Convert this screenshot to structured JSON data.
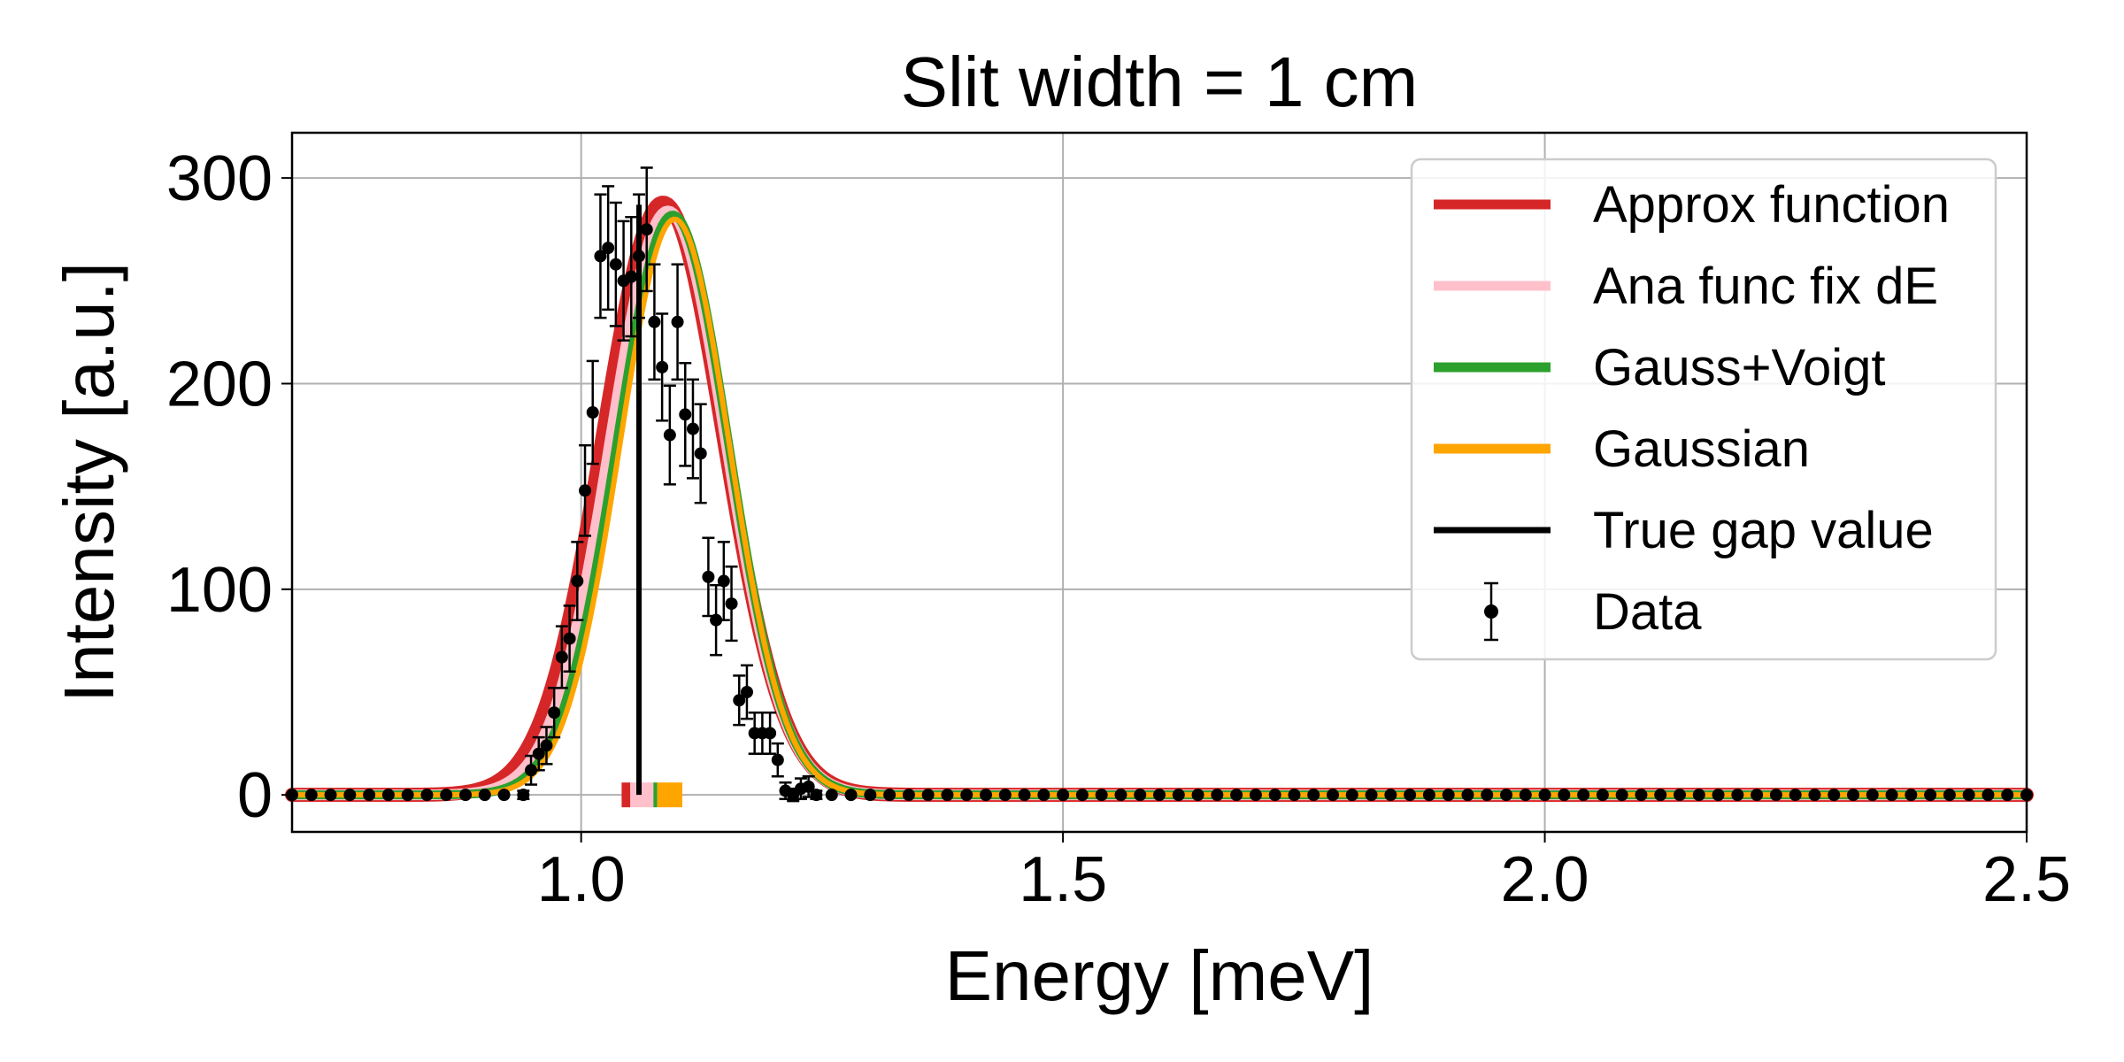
{
  "chart_data": {
    "type": "line",
    "title": "Slit width = 1 cm",
    "xlabel": "Energy [meV]",
    "ylabel": "Intensity [a.u.]",
    "xlim": [
      0.7,
      2.5
    ],
    "ylim": [
      -18,
      322
    ],
    "xticks": [
      {
        "value": 1.0,
        "label": "1.0"
      },
      {
        "value": 1.5,
        "label": "1.5"
      },
      {
        "value": 2.0,
        "label": "2.0"
      },
      {
        "value": 2.5,
        "label": "2.5"
      }
    ],
    "yticks": [
      {
        "value": 0,
        "label": "0"
      },
      {
        "value": 100,
        "label": "100"
      },
      {
        "value": 200,
        "label": "200"
      },
      {
        "value": 300,
        "label": "300"
      }
    ],
    "grid": true,
    "legend_position": "top-right",
    "series": [
      {
        "name": "Approx function",
        "color": "#d62728",
        "kind": "curve",
        "center": 1.085,
        "sigma": 0.0625,
        "amplitude": 288
      },
      {
        "name": "Ana func fix dE",
        "color": "#ffc0cb",
        "kind": "curve",
        "center": 1.09,
        "sigma": 0.06,
        "amplitude": 284
      },
      {
        "name": "Gauss+Voigt",
        "color": "#2ca02c",
        "kind": "curve",
        "center": 1.095,
        "sigma": 0.058,
        "amplitude": 282
      },
      {
        "name": "Gaussian",
        "color": "#ffa500",
        "kind": "curve",
        "center": 1.097,
        "sigma": 0.057,
        "amplitude": 280
      },
      {
        "name": "True gap value",
        "color": "#000000",
        "kind": "vline",
        "x": 1.06,
        "y_top": 287
      },
      {
        "name": "Data",
        "color": "#000000",
        "kind": "errorbar"
      }
    ],
    "gap_markers": [
      {
        "name": "Approx function",
        "color": "#d62728",
        "x_start": 1.042,
        "x_end": 1.051
      },
      {
        "name": "Ana func fix dE",
        "color": "#ffc0cb",
        "x_start": 1.051,
        "x_end": 1.075
      },
      {
        "name": "Gauss+Voigt",
        "color": "#2ca02c",
        "x_start": 1.075,
        "x_end": 1.079
      },
      {
        "name": "Gaussian",
        "color": "#ffa500",
        "x_start": 1.079,
        "x_end": 1.105
      }
    ],
    "data_points": [
      {
        "x": 0.7,
        "y": 0,
        "err": 0
      },
      {
        "x": 0.72,
        "y": 0,
        "err": 0
      },
      {
        "x": 0.74,
        "y": 0,
        "err": 0
      },
      {
        "x": 0.76,
        "y": 0,
        "err": 0
      },
      {
        "x": 0.78,
        "y": 0,
        "err": 0
      },
      {
        "x": 0.8,
        "y": 0,
        "err": 0
      },
      {
        "x": 0.82,
        "y": 0,
        "err": 0
      },
      {
        "x": 0.84,
        "y": 0,
        "err": 0
      },
      {
        "x": 0.86,
        "y": 0,
        "err": 0
      },
      {
        "x": 0.88,
        "y": 0,
        "err": 0
      },
      {
        "x": 0.9,
        "y": 0,
        "err": 0
      },
      {
        "x": 0.92,
        "y": 0,
        "err": 0
      },
      {
        "x": 0.94,
        "y": 0,
        "err": 2
      },
      {
        "x": 0.948,
        "y": 12,
        "err": 7
      },
      {
        "x": 0.956,
        "y": 20,
        "err": 8
      },
      {
        "x": 0.964,
        "y": 24,
        "err": 9
      },
      {
        "x": 0.972,
        "y": 40,
        "err": 12
      },
      {
        "x": 0.98,
        "y": 67,
        "err": 15
      },
      {
        "x": 0.988,
        "y": 76,
        "err": 16
      },
      {
        "x": 0.996,
        "y": 104,
        "err": 19
      },
      {
        "x": 1.004,
        "y": 148,
        "err": 22
      },
      {
        "x": 1.012,
        "y": 186,
        "err": 25
      },
      {
        "x": 1.02,
        "y": 262,
        "err": 30
      },
      {
        "x": 1.028,
        "y": 266,
        "err": 30
      },
      {
        "x": 1.036,
        "y": 258,
        "err": 30
      },
      {
        "x": 1.044,
        "y": 250,
        "err": 29
      },
      {
        "x": 1.052,
        "y": 252,
        "err": 29
      },
      {
        "x": 1.06,
        "y": 262,
        "err": 30
      },
      {
        "x": 1.068,
        "y": 275,
        "err": 30
      },
      {
        "x": 1.076,
        "y": 230,
        "err": 28
      },
      {
        "x": 1.084,
        "y": 208,
        "err": 26
      },
      {
        "x": 1.092,
        "y": 175,
        "err": 24
      },
      {
        "x": 1.1,
        "y": 230,
        "err": 28
      },
      {
        "x": 1.108,
        "y": 185,
        "err": 25
      },
      {
        "x": 1.116,
        "y": 178,
        "err": 24
      },
      {
        "x": 1.124,
        "y": 166,
        "err": 24
      },
      {
        "x": 1.132,
        "y": 106,
        "err": 19
      },
      {
        "x": 1.14,
        "y": 85,
        "err": 17
      },
      {
        "x": 1.148,
        "y": 104,
        "err": 19
      },
      {
        "x": 1.156,
        "y": 93,
        "err": 18
      },
      {
        "x": 1.164,
        "y": 46,
        "err": 12
      },
      {
        "x": 1.172,
        "y": 50,
        "err": 13
      },
      {
        "x": 1.18,
        "y": 30,
        "err": 10
      },
      {
        "x": 1.188,
        "y": 30,
        "err": 10
      },
      {
        "x": 1.196,
        "y": 30,
        "err": 10
      },
      {
        "x": 1.204,
        "y": 17,
        "err": 8
      },
      {
        "x": 1.212,
        "y": 2,
        "err": 4
      },
      {
        "x": 1.22,
        "y": 0,
        "err": 3
      },
      {
        "x": 1.228,
        "y": 3,
        "err": 5
      },
      {
        "x": 1.236,
        "y": 4,
        "err": 5
      },
      {
        "x": 1.244,
        "y": 0,
        "err": 2
      },
      {
        "x": 1.26,
        "y": 0,
        "err": 0
      },
      {
        "x": 1.28,
        "y": 0,
        "err": 0
      },
      {
        "x": 1.3,
        "y": 0,
        "err": 0
      },
      {
        "x": 1.32,
        "y": 0,
        "err": 0
      },
      {
        "x": 1.34,
        "y": 0,
        "err": 0
      },
      {
        "x": 1.36,
        "y": 0,
        "err": 0
      },
      {
        "x": 1.38,
        "y": 0,
        "err": 0
      },
      {
        "x": 1.4,
        "y": 0,
        "err": 0
      },
      {
        "x": 1.42,
        "y": 0,
        "err": 0
      },
      {
        "x": 1.44,
        "y": 0,
        "err": 0
      },
      {
        "x": 1.46,
        "y": 0,
        "err": 0
      },
      {
        "x": 1.48,
        "y": 0,
        "err": 0
      },
      {
        "x": 1.5,
        "y": 0,
        "err": 0
      },
      {
        "x": 1.52,
        "y": 0,
        "err": 0
      },
      {
        "x": 1.54,
        "y": 0,
        "err": 0
      },
      {
        "x": 1.56,
        "y": 0,
        "err": 0
      },
      {
        "x": 1.58,
        "y": 0,
        "err": 0
      },
      {
        "x": 1.6,
        "y": 0,
        "err": 0
      },
      {
        "x": 1.62,
        "y": 0,
        "err": 0
      },
      {
        "x": 1.64,
        "y": 0,
        "err": 0
      },
      {
        "x": 1.66,
        "y": 0,
        "err": 0
      },
      {
        "x": 1.68,
        "y": 0,
        "err": 0
      },
      {
        "x": 1.7,
        "y": 0,
        "err": 0
      },
      {
        "x": 1.72,
        "y": 0,
        "err": 0
      },
      {
        "x": 1.74,
        "y": 0,
        "err": 0
      },
      {
        "x": 1.76,
        "y": 0,
        "err": 0
      },
      {
        "x": 1.78,
        "y": 0,
        "err": 0
      },
      {
        "x": 1.8,
        "y": 0,
        "err": 0
      },
      {
        "x": 1.82,
        "y": 0,
        "err": 0
      },
      {
        "x": 1.84,
        "y": 0,
        "err": 0
      },
      {
        "x": 1.86,
        "y": 0,
        "err": 0
      },
      {
        "x": 1.88,
        "y": 0,
        "err": 0
      },
      {
        "x": 1.9,
        "y": 0,
        "err": 0
      },
      {
        "x": 1.92,
        "y": 0,
        "err": 0
      },
      {
        "x": 1.94,
        "y": 0,
        "err": 0
      },
      {
        "x": 1.96,
        "y": 0,
        "err": 0
      },
      {
        "x": 1.98,
        "y": 0,
        "err": 0
      },
      {
        "x": 2.0,
        "y": 0,
        "err": 0
      },
      {
        "x": 2.02,
        "y": 0,
        "err": 0
      },
      {
        "x": 2.04,
        "y": 0,
        "err": 0
      },
      {
        "x": 2.06,
        "y": 0,
        "err": 0
      },
      {
        "x": 2.08,
        "y": 0,
        "err": 0
      },
      {
        "x": 2.1,
        "y": 0,
        "err": 0
      },
      {
        "x": 2.12,
        "y": 0,
        "err": 0
      },
      {
        "x": 2.14,
        "y": 0,
        "err": 0
      },
      {
        "x": 2.16,
        "y": 0,
        "err": 0
      },
      {
        "x": 2.18,
        "y": 0,
        "err": 0
      },
      {
        "x": 2.2,
        "y": 0,
        "err": 0
      },
      {
        "x": 2.22,
        "y": 0,
        "err": 0
      },
      {
        "x": 2.24,
        "y": 0,
        "err": 0
      },
      {
        "x": 2.26,
        "y": 0,
        "err": 0
      },
      {
        "x": 2.28,
        "y": 0,
        "err": 0
      },
      {
        "x": 2.3,
        "y": 0,
        "err": 0
      },
      {
        "x": 2.32,
        "y": 0,
        "err": 0
      },
      {
        "x": 2.34,
        "y": 0,
        "err": 0
      },
      {
        "x": 2.36,
        "y": 0,
        "err": 0
      },
      {
        "x": 2.38,
        "y": 0,
        "err": 0
      },
      {
        "x": 2.4,
        "y": 0,
        "err": 0
      },
      {
        "x": 2.42,
        "y": 0,
        "err": 0
      },
      {
        "x": 2.44,
        "y": 0,
        "err": 0
      },
      {
        "x": 2.46,
        "y": 0,
        "err": 0
      },
      {
        "x": 2.48,
        "y": 0,
        "err": 0
      },
      {
        "x": 2.5,
        "y": 0,
        "err": 0
      }
    ]
  }
}
